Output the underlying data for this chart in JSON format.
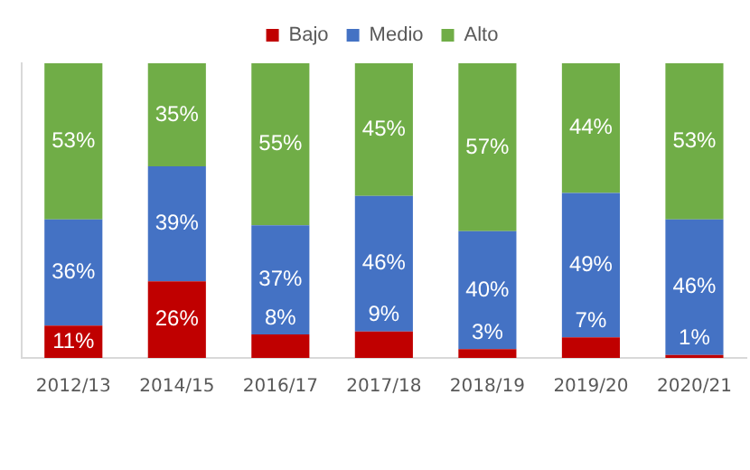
{
  "chart_data": {
    "type": "bar",
    "stacked": true,
    "categories": [
      "2012/13",
      "2014/15",
      "2016/17",
      "2017/18",
      "2018/19",
      "2019/20",
      "2020/21"
    ],
    "series": [
      {
        "name": "Bajo",
        "color": "#c00000",
        "values": [
          11,
          26,
          8,
          9,
          3,
          7,
          1
        ],
        "value_labels": [
          "11%",
          "26%",
          "8%",
          "9%",
          "3%",
          "7%",
          "1%"
        ]
      },
      {
        "name": "Medio",
        "color": "#4472c4",
        "values": [
          36,
          39,
          37,
          46,
          40,
          49,
          46
        ],
        "value_labels": [
          "36%",
          "39%",
          "37%",
          "46%",
          "40%",
          "49%",
          "46%"
        ]
      },
      {
        "name": "Alto",
        "color": "#70ad47",
        "values": [
          53,
          35,
          55,
          45,
          57,
          44,
          53
        ],
        "value_labels": [
          "53%",
          "35%",
          "55%",
          "45%",
          "57%",
          "44%",
          "53%"
        ]
      }
    ],
    "ylim": [
      0,
      100
    ],
    "tick_labels": "x",
    "legend": "top",
    "grid": false
  }
}
